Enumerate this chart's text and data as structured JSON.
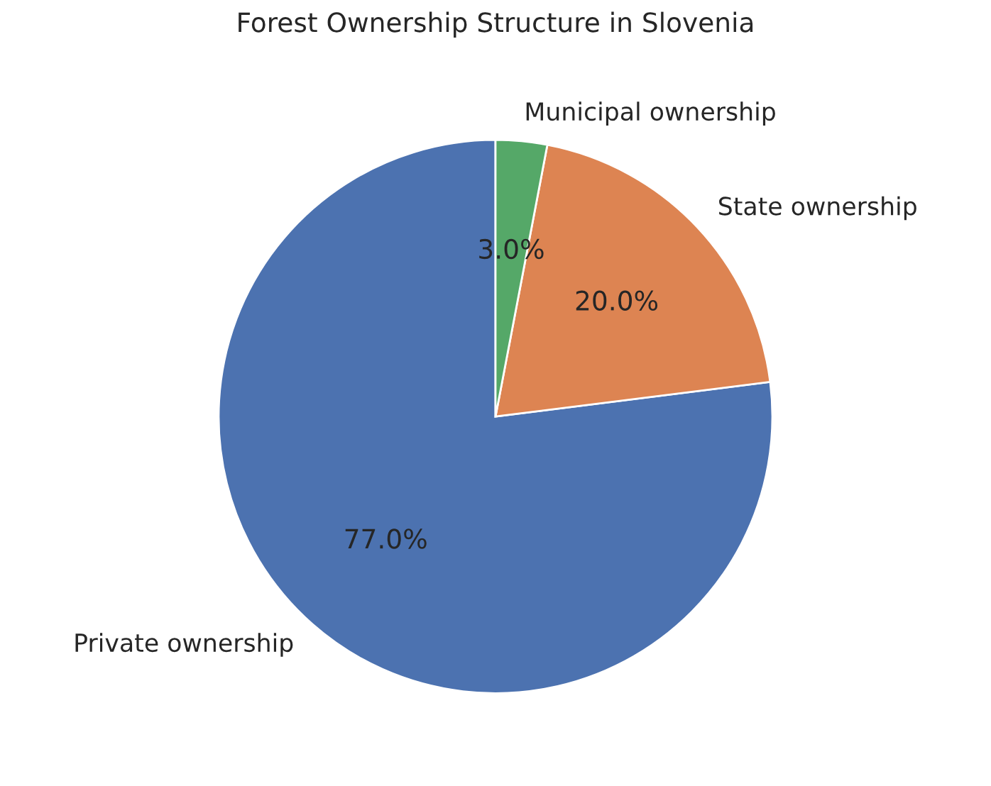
{
  "chart_data": {
    "type": "pie",
    "title": "Forest Ownership Structure in Slovenia",
    "categories": [
      "Private ownership",
      "State ownership",
      "Municipal ownership"
    ],
    "values": [
      77,
      20,
      3
    ],
    "value_labels": [
      "77.0%",
      "20.0%",
      "3.0%"
    ],
    "colors": [
      "#4c72b0",
      "#dd8452",
      "#55a868"
    ]
  }
}
